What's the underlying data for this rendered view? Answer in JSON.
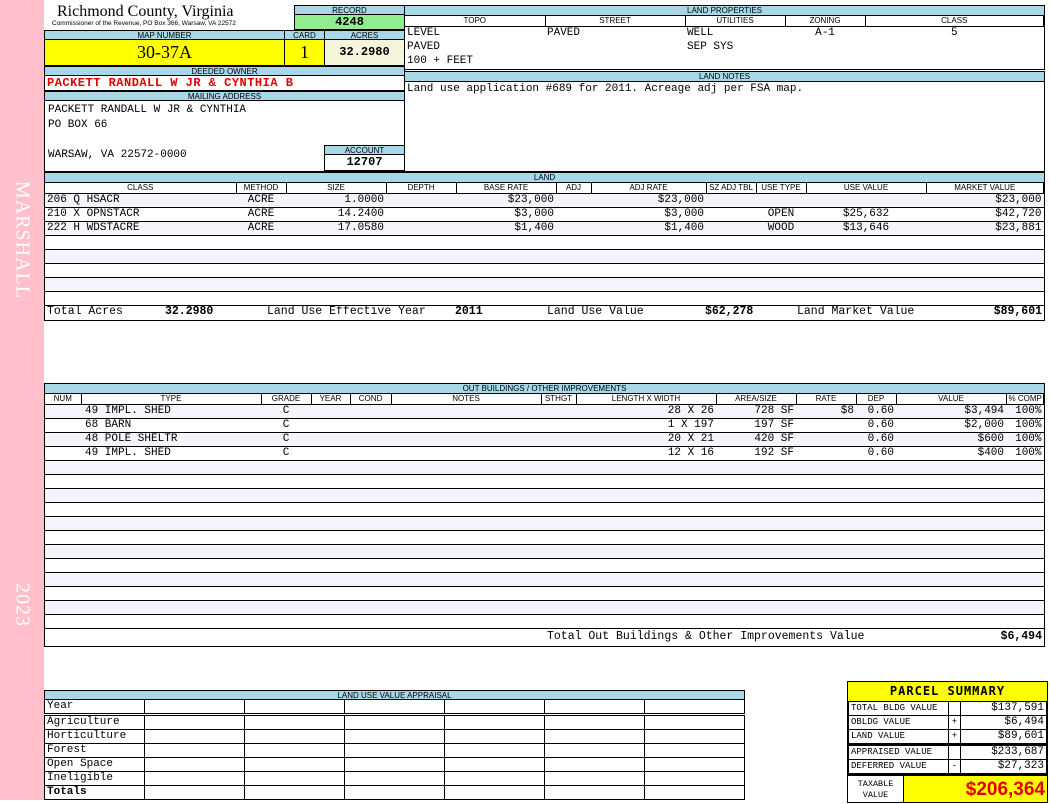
{
  "sidebar": {
    "name": "MARSHALL",
    "year": "2023",
    "color": "#ffc0cb"
  },
  "header": {
    "title": "Richmond County, Virginia",
    "subtitle": "Commissioner of the Revenue, PO Box 366, Warsaw, VA 22572"
  },
  "record": {
    "label": "RECORD",
    "value": "4248"
  },
  "map": {
    "map_label": "MAP NUMBER",
    "map_value": "30-37A",
    "card_label": "CARD",
    "card_value": "1",
    "acres_label": "ACRES",
    "acres_value": "32.2980"
  },
  "owner": {
    "label": "DEEDED OWNER",
    "value": "PACKETT RANDALL W JR & CYNTHIA B"
  },
  "mailing": {
    "label": "MAILING ADDRESS",
    "lines": [
      "PACKETT RANDALL W JR & CYNTHIA",
      "PO BOX 66",
      "",
      "WARSAW, VA 22572-0000"
    ]
  },
  "account": {
    "label": "ACCOUNT",
    "value": "12707"
  },
  "land_properties": {
    "label": "LAND PROPERTIES",
    "columns": [
      "TOPO",
      "STREET",
      "UTILITIES",
      "ZONING",
      "CLASS"
    ],
    "rows": [
      [
        "LEVEL",
        "PAVED",
        "WELL",
        "A-1",
        "5"
      ],
      [
        "PAVED",
        "",
        "SEP SYS",
        "",
        ""
      ],
      [
        "100 + FEET",
        "",
        "",
        "",
        ""
      ]
    ]
  },
  "land_notes": {
    "label": "LAND NOTES",
    "text": "Land use application #689 for 2011. Acreage adj per FSA map."
  },
  "land": {
    "label": "LAND",
    "columns": [
      "CLASS",
      "METHOD",
      "SIZE",
      "DEPTH",
      "BASE RATE",
      "ADJ",
      "ADJ RATE",
      "SZ ADJ TBL",
      "USE TYPE",
      "USE VALUE",
      "MARKET VALUE"
    ],
    "rows": [
      [
        "206 Q HSACR",
        "ACRE",
        "1.0000",
        "",
        "$23,000",
        "",
        "$23,000",
        "",
        "",
        "",
        "$23,000"
      ],
      [
        "210 X OPNSTACR",
        "ACRE",
        "14.2400",
        "",
        "$3,000",
        "",
        "$3,000",
        "",
        "OPEN",
        "$25,632",
        "$42,720"
      ],
      [
        "222 H WDSTACRE",
        "ACRE",
        "17.0580",
        "",
        "$1,400",
        "",
        "$1,400",
        "",
        "WOOD",
        "$13,646",
        "$23,881"
      ]
    ],
    "totals": {
      "acres_label": "Total Acres",
      "acres": "32.2980",
      "year_label": "Land Use Effective Year",
      "year": "2011",
      "use_label": "Land Use Value",
      "use": "$62,278",
      "market_label": "Land Market Value",
      "market": "$89,601"
    }
  },
  "outbuildings": {
    "label": "OUT BUILDINGS / OTHER IMPROVEMENTS",
    "columns": [
      "NUM",
      "TYPE",
      "GRADE",
      "YEAR",
      "COND",
      "NOTES",
      "STHGT",
      "LENGTH X WIDTH",
      "AREA/SIZE",
      "RATE",
      "DEP",
      "VALUE",
      "% COMP"
    ],
    "rows": [
      [
        "",
        "49 IMPL. SHED",
        "C",
        "",
        "",
        "",
        "",
        "28 X 26",
        "728 SF",
        "$8",
        "0.60",
        "$3,494",
        "100%"
      ],
      [
        "",
        "68 BARN",
        "C",
        "",
        "",
        "",
        "",
        "1 X 197",
        "197 SF",
        "",
        "0.60",
        "$2,000",
        "100%"
      ],
      [
        "",
        "48 POLE SHELTR",
        "C",
        "",
        "",
        "",
        "",
        "20 X 21",
        "420 SF",
        "",
        "0.60",
        "$600",
        "100%"
      ],
      [
        "",
        "49 IMPL. SHED",
        "C",
        "",
        "",
        "",
        "",
        "12 X 16",
        "192 SF",
        "",
        "0.60",
        "$400",
        "100%"
      ]
    ],
    "total_label": "Total Out Buildings & Other Improvements Value",
    "total": "$6,494"
  },
  "land_use_appraisal": {
    "label": "LAND USE VALUE APPRAISAL",
    "year_label": "Year",
    "rows": [
      "Agriculture",
      "Horticulture",
      "Forest",
      "Open Space",
      "Ineligible",
      "Totals"
    ]
  },
  "parcel_summary": {
    "label": "PARCEL SUMMARY",
    "rows": [
      {
        "label": "TOTAL BLDG VALUE",
        "sign": "",
        "value": "$137,591"
      },
      {
        "label": "OBLDG VALUE",
        "sign": "+",
        "value": "$6,494"
      },
      {
        "label": "LAND VALUE",
        "sign": "+",
        "value": "$89,601"
      },
      {
        "label": "APPRAISED VALUE",
        "sign": "",
        "value": "$233,687"
      },
      {
        "label": "DEFERRED VALUE",
        "sign": "-",
        "value": "$27,323"
      }
    ],
    "taxable_label": "TAXABLE VALUE",
    "taxable": "$206,364"
  },
  "colors": {
    "header_bg": "#a8d8e8",
    "highlight": "#ffff00",
    "record_bg": "#90ee90",
    "owner": "#e00000"
  }
}
